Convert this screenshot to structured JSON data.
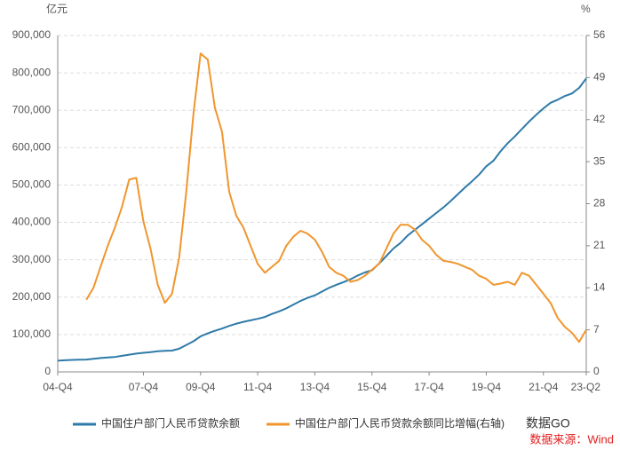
{
  "chart_data": {
    "type": "line",
    "y_unit": "亿元",
    "y2_unit": "%",
    "categories": [
      "04-Q4",
      null,
      null,
      null,
      null,
      null,
      null,
      null,
      null,
      null,
      null,
      null,
      "07-Q4",
      null,
      null,
      null,
      null,
      null,
      null,
      null,
      "09-Q4",
      null,
      null,
      null,
      null,
      null,
      null,
      null,
      "11-Q4",
      null,
      null,
      null,
      null,
      null,
      null,
      null,
      "13-Q4",
      null,
      null,
      null,
      null,
      null,
      null,
      null,
      "15-Q4",
      null,
      null,
      null,
      null,
      null,
      null,
      null,
      "17-Q4",
      null,
      null,
      null,
      null,
      null,
      null,
      null,
      "19-Q4",
      null,
      null,
      null,
      null,
      null,
      null,
      null,
      "21-Q4",
      null,
      null,
      null,
      null,
      null,
      "23-Q2"
    ],
    "series": [
      {
        "name": "中国住户部门人民币贷款余额",
        "color": "#2e7aa8",
        "values": [
          30000,
          31000,
          32000,
          32500,
          33000,
          35000,
          37000,
          38500,
          40000,
          43000,
          46000,
          49000,
          51000,
          53000,
          55000,
          56500,
          57000,
          62000,
          72000,
          82000,
          95000,
          103000,
          110000,
          116000,
          123000,
          129000,
          134000,
          138000,
          142000,
          147000,
          155000,
          162000,
          170000,
          180000,
          190000,
          198000,
          205000,
          215000,
          225000,
          233000,
          240000,
          248000,
          258000,
          266000,
          272000,
          290000,
          310000,
          330000,
          345000,
          365000,
          380000,
          395000,
          410000,
          425000,
          440000,
          457000,
          475000,
          493000,
          510000,
          528000,
          550000,
          565000,
          590000,
          612000,
          630000,
          650000,
          670000,
          688000,
          705000,
          720000,
          728000,
          738000,
          745000,
          760000,
          785000
        ]
      },
      {
        "name": "中国住户部门人民币贷款余额同比增幅(右轴)",
        "color": "#f0962e",
        "axis": "y2",
        "values": [
          null,
          null,
          null,
          null,
          12,
          14,
          17.5,
          21,
          24,
          27.5,
          32,
          32.3,
          25,
          20.5,
          14.5,
          11.5,
          13,
          19,
          30,
          43,
          53,
          52,
          44,
          40,
          30,
          26,
          24,
          21,
          18,
          16.5,
          17.5,
          18.5,
          21,
          22.5,
          23.5,
          23,
          22,
          20,
          17.5,
          16.5,
          16,
          15,
          15.3,
          16,
          17,
          18,
          20.5,
          23,
          24.5,
          24.5,
          23.7,
          22,
          21,
          19.5,
          18.5,
          18.3,
          18,
          17.5,
          17,
          16,
          15.5,
          14.5,
          14.7,
          15,
          14.5,
          16.5,
          16,
          14.5,
          13,
          11.5,
          9,
          7.5,
          6.5,
          5,
          7
        ]
      }
    ],
    "ylim": [
      0,
      900000
    ],
    "yticks": [
      0,
      {
        "value": 100000,
        "label": "100,000"
      },
      {
        "value": 200000,
        "label": "200,000"
      },
      {
        "value": 300000,
        "label": "300,000"
      },
      {
        "value": 400000,
        "label": "400,000"
      },
      {
        "value": 500000,
        "label": "500,000"
      },
      {
        "value": 600000,
        "label": "600,000"
      },
      {
        "value": 700000,
        "label": "700,000"
      },
      {
        "value": 800000,
        "label": "800,000"
      },
      {
        "value": 900000,
        "label": "900,000"
      }
    ],
    "y2lim": [
      0,
      56
    ],
    "y2ticks": [
      0,
      7,
      14,
      21,
      28,
      35,
      42,
      49,
      56
    ],
    "grid": true,
    "legend": "bottom",
    "watermark": "数据GO",
    "source": "数据来源：Wind"
  }
}
